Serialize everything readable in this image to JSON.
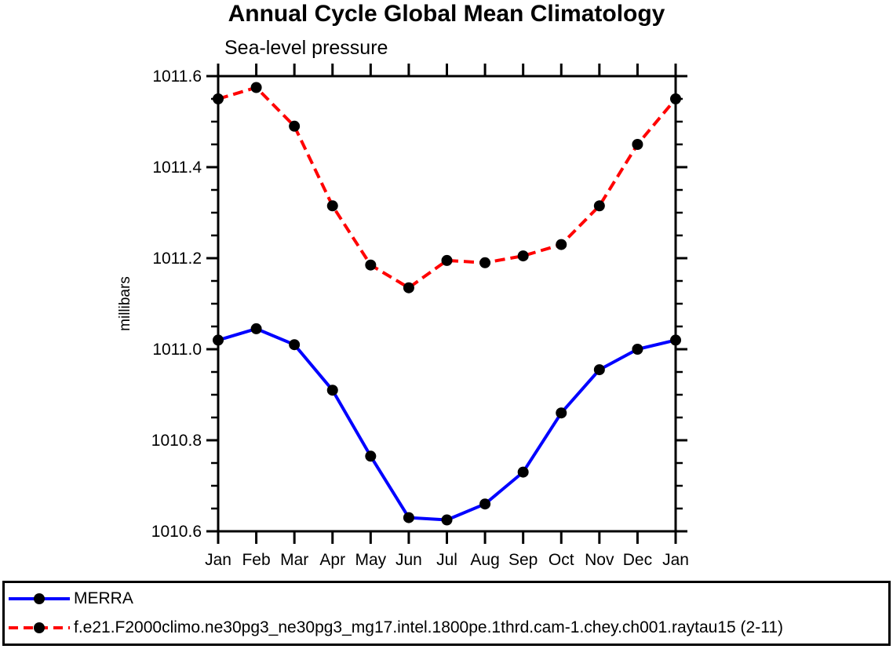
{
  "chart_data": {
    "type": "line",
    "title": "Annual Cycle Global Mean Climatology",
    "subtitle": "Sea-level pressure",
    "ylabel": "millibars",
    "xlabel": "",
    "categories": [
      "Jan",
      "Feb",
      "Mar",
      "Apr",
      "May",
      "Jun",
      "Jul",
      "Aug",
      "Sep",
      "Oct",
      "Nov",
      "Dec",
      "Jan"
    ],
    "series": [
      {
        "name": "MERRA",
        "color": "#0000ff",
        "line_style": "solid",
        "marker": "filled-circle",
        "marker_color": "#000000",
        "values": [
          1011.02,
          1011.045,
          1011.01,
          1010.91,
          1010.765,
          1010.63,
          1010.625,
          1010.66,
          1010.73,
          1010.86,
          1010.955,
          1011.0,
          1011.02
        ]
      },
      {
        "name": "f.e21.F2000climo.ne30pg3_ne30pg3_mg17.intel.1800pe.1thrd.cam-1.chey.ch001.raytau15 (2-11)",
        "color": "#ff0000",
        "line_style": "dashed",
        "marker": "filled-circle",
        "marker_color": "#000000",
        "values": [
          1011.55,
          1011.575,
          1011.49,
          1011.315,
          1011.185,
          1011.135,
          1011.195,
          1011.19,
          1011.205,
          1011.23,
          1011.315,
          1011.45,
          1011.55
        ]
      }
    ],
    "ylim": [
      1010.6,
      1011.6
    ],
    "ytick_labels": [
      "1010.6",
      "1010.8",
      "1011.0",
      "1011.2",
      "1011.4",
      "1011.6"
    ],
    "ytick_step": 0.2,
    "yminor_step": 0.05,
    "grid": false,
    "frame": "box-with-outward-ticks",
    "legend_position": "bottom-box",
    "colors": {
      "axis": "#000000",
      "text": "#000000",
      "background": "#ffffff"
    }
  }
}
